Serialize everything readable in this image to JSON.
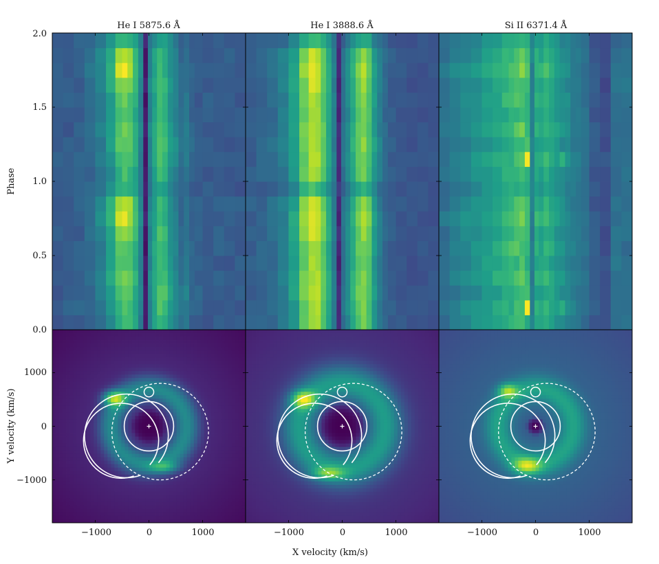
{
  "chart_data": [
    {
      "type": "heatmap",
      "kind": "trailed-spectrogram",
      "title": "He I 5875.6 Å",
      "ylabel": "Phase",
      "ylim": [
        0.0,
        2.0
      ],
      "yticks": [
        "0.0",
        "0.5",
        "1.0",
        "1.5",
        "2.0"
      ],
      "xlim": [
        -1800,
        1800
      ],
      "velocity_bins_kms": [
        -1700,
        -1500,
        -1300,
        -1100,
        -900,
        -700,
        -550,
        -450,
        -350,
        -250,
        -150,
        -60,
        20,
        100,
        200,
        300,
        400,
        500,
        600,
        700,
        800,
        900,
        1100,
        1300,
        1500,
        1700
      ],
      "phase_bins": [
        0.0,
        0.1,
        0.2,
        0.3,
        0.4,
        0.5,
        0.6,
        0.7,
        0.8,
        0.9
      ],
      "intensity_grid": [
        [
          0.28,
          0.3,
          0.3,
          0.32,
          0.36,
          0.48,
          0.62,
          0.7,
          0.66,
          0.58,
          0.4,
          0.05,
          0.42,
          0.55,
          0.68,
          0.62,
          0.5,
          0.44,
          0.36,
          0.4,
          0.3,
          0.3,
          0.28,
          0.3,
          0.28,
          0.3
        ],
        [
          0.3,
          0.3,
          0.32,
          0.34,
          0.4,
          0.52,
          0.66,
          0.72,
          0.7,
          0.6,
          0.42,
          0.06,
          0.44,
          0.58,
          0.72,
          0.66,
          0.54,
          0.48,
          0.38,
          0.42,
          0.32,
          0.3,
          0.3,
          0.28,
          0.3,
          0.28
        ],
        [
          0.28,
          0.3,
          0.3,
          0.34,
          0.42,
          0.56,
          0.72,
          0.76,
          0.74,
          0.62,
          0.44,
          0.06,
          0.46,
          0.6,
          0.74,
          0.7,
          0.56,
          0.5,
          0.4,
          0.44,
          0.34,
          0.32,
          0.3,
          0.3,
          0.28,
          0.3
        ],
        [
          0.3,
          0.28,
          0.32,
          0.36,
          0.44,
          0.58,
          0.74,
          0.78,
          0.74,
          0.64,
          0.46,
          0.08,
          0.46,
          0.58,
          0.7,
          0.66,
          0.54,
          0.46,
          0.38,
          0.42,
          0.32,
          0.3,
          0.28,
          0.3,
          0.3,
          0.28
        ],
        [
          0.28,
          0.3,
          0.3,
          0.34,
          0.4,
          0.54,
          0.7,
          0.74,
          0.7,
          0.6,
          0.44,
          0.06,
          0.44,
          0.56,
          0.66,
          0.62,
          0.5,
          0.44,
          0.36,
          0.4,
          0.3,
          0.3,
          0.3,
          0.28,
          0.28,
          0.3
        ],
        [
          0.3,
          0.3,
          0.32,
          0.34,
          0.42,
          0.56,
          0.72,
          0.76,
          0.72,
          0.62,
          0.44,
          0.06,
          0.44,
          0.58,
          0.68,
          0.64,
          0.52,
          0.46,
          0.36,
          0.4,
          0.32,
          0.28,
          0.3,
          0.3,
          0.3,
          0.28
        ],
        [
          0.28,
          0.3,
          0.3,
          0.36,
          0.44,
          0.6,
          0.78,
          0.82,
          0.78,
          0.66,
          0.46,
          0.08,
          0.46,
          0.58,
          0.7,
          0.66,
          0.52,
          0.44,
          0.36,
          0.38,
          0.3,
          0.3,
          0.28,
          0.3,
          0.28,
          0.3
        ],
        [
          0.3,
          0.28,
          0.32,
          0.38,
          0.48,
          0.66,
          0.92,
          0.98,
          0.86,
          0.7,
          0.48,
          0.08,
          0.46,
          0.56,
          0.66,
          0.62,
          0.5,
          0.44,
          0.34,
          0.38,
          0.32,
          0.3,
          0.3,
          0.28,
          0.3,
          0.28
        ],
        [
          0.28,
          0.3,
          0.3,
          0.36,
          0.46,
          0.62,
          0.86,
          0.9,
          0.84,
          0.68,
          0.46,
          0.06,
          0.44,
          0.56,
          0.66,
          0.6,
          0.5,
          0.42,
          0.34,
          0.36,
          0.3,
          0.3,
          0.28,
          0.3,
          0.3,
          0.3
        ],
        [
          0.26,
          0.28,
          0.3,
          0.32,
          0.38,
          0.5,
          0.62,
          0.66,
          0.62,
          0.56,
          0.4,
          0.1,
          0.4,
          0.5,
          0.58,
          0.56,
          0.46,
          0.4,
          0.32,
          0.34,
          0.28,
          0.28,
          0.3,
          0.28,
          0.28,
          0.26
        ]
      ]
    },
    {
      "type": "heatmap",
      "kind": "trailed-spectrogram",
      "title": "He I 3888.6 Å",
      "ylim": [
        0.0,
        2.0
      ],
      "xlim": [
        -1800,
        1800
      ],
      "velocity_bins_kms": [
        -1700,
        -1500,
        -1300,
        -1100,
        -900,
        -700,
        -550,
        -450,
        -350,
        -250,
        -150,
        -60,
        20,
        100,
        200,
        300,
        400,
        500,
        600,
        700,
        800,
        900,
        1100,
        1300,
        1500,
        1700
      ],
      "phase_bins": [
        0.0,
        0.1,
        0.2,
        0.3,
        0.4,
        0.5,
        0.6,
        0.7,
        0.8,
        0.9
      ],
      "intensity_grid": [
        [
          0.3,
          0.32,
          0.34,
          0.4,
          0.52,
          0.74,
          0.86,
          0.84,
          0.72,
          0.58,
          0.4,
          0.12,
          0.36,
          0.46,
          0.6,
          0.72,
          0.78,
          0.7,
          0.52,
          0.42,
          0.34,
          0.3,
          0.28,
          0.26,
          0.26,
          0.26
        ],
        [
          0.3,
          0.32,
          0.36,
          0.42,
          0.54,
          0.76,
          0.88,
          0.86,
          0.74,
          0.6,
          0.42,
          0.1,
          0.38,
          0.48,
          0.62,
          0.74,
          0.8,
          0.72,
          0.54,
          0.42,
          0.34,
          0.3,
          0.28,
          0.26,
          0.26,
          0.26
        ],
        [
          0.3,
          0.32,
          0.36,
          0.44,
          0.56,
          0.78,
          0.9,
          0.88,
          0.76,
          0.62,
          0.42,
          0.12,
          0.38,
          0.5,
          0.64,
          0.76,
          0.82,
          0.74,
          0.56,
          0.44,
          0.34,
          0.3,
          0.28,
          0.26,
          0.26,
          0.26
        ],
        [
          0.3,
          0.32,
          0.36,
          0.44,
          0.56,
          0.78,
          0.88,
          0.86,
          0.74,
          0.6,
          0.42,
          0.12,
          0.38,
          0.48,
          0.62,
          0.74,
          0.8,
          0.7,
          0.54,
          0.42,
          0.34,
          0.3,
          0.28,
          0.26,
          0.26,
          0.26
        ],
        [
          0.3,
          0.32,
          0.34,
          0.42,
          0.54,
          0.76,
          0.86,
          0.84,
          0.72,
          0.58,
          0.4,
          0.1,
          0.36,
          0.46,
          0.6,
          0.72,
          0.78,
          0.7,
          0.52,
          0.42,
          0.34,
          0.3,
          0.28,
          0.26,
          0.26,
          0.26
        ],
        [
          0.3,
          0.32,
          0.34,
          0.42,
          0.54,
          0.76,
          0.88,
          0.86,
          0.74,
          0.6,
          0.42,
          0.12,
          0.38,
          0.48,
          0.62,
          0.74,
          0.8,
          0.72,
          0.54,
          0.42,
          0.34,
          0.3,
          0.28,
          0.26,
          0.26,
          0.26
        ],
        [
          0.3,
          0.32,
          0.36,
          0.44,
          0.58,
          0.8,
          0.92,
          0.9,
          0.76,
          0.62,
          0.42,
          0.12,
          0.38,
          0.48,
          0.62,
          0.76,
          0.84,
          0.74,
          0.56,
          0.44,
          0.34,
          0.3,
          0.28,
          0.26,
          0.26,
          0.26
        ],
        [
          0.3,
          0.32,
          0.36,
          0.44,
          0.58,
          0.84,
          0.98,
          0.94,
          0.78,
          0.62,
          0.42,
          0.1,
          0.38,
          0.5,
          0.64,
          0.8,
          0.9,
          0.78,
          0.56,
          0.44,
          0.34,
          0.3,
          0.28,
          0.26,
          0.26,
          0.26
        ],
        [
          0.3,
          0.32,
          0.36,
          0.44,
          0.56,
          0.8,
          0.92,
          0.88,
          0.76,
          0.6,
          0.42,
          0.1,
          0.36,
          0.48,
          0.62,
          0.76,
          0.84,
          0.74,
          0.54,
          0.42,
          0.34,
          0.3,
          0.28,
          0.26,
          0.26,
          0.26
        ],
        [
          0.3,
          0.3,
          0.32,
          0.36,
          0.46,
          0.62,
          0.7,
          0.68,
          0.6,
          0.5,
          0.36,
          0.16,
          0.32,
          0.4,
          0.5,
          0.58,
          0.62,
          0.56,
          0.44,
          0.36,
          0.32,
          0.28,
          0.26,
          0.26,
          0.26,
          0.26
        ]
      ]
    },
    {
      "type": "heatmap",
      "kind": "trailed-spectrogram",
      "title": "Si II 6371.4 Å",
      "ylim": [
        0.0,
        2.0
      ],
      "xlim": [
        -1800,
        1800
      ],
      "velocity_bins_kms": [
        -1700,
        -1500,
        -1300,
        -1100,
        -900,
        -700,
        -550,
        -450,
        -350,
        -250,
        -150,
        -60,
        20,
        100,
        200,
        300,
        400,
        500,
        600,
        700,
        800,
        900,
        1100,
        1300,
        1500,
        1700
      ],
      "phase_bins": [
        0.0,
        0.1,
        0.2,
        0.3,
        0.4,
        0.5,
        0.6,
        0.7,
        0.8,
        0.9
      ],
      "intensity_grid": [
        [
          0.36,
          0.4,
          0.44,
          0.5,
          0.54,
          0.58,
          0.62,
          0.64,
          0.66,
          0.7,
          0.62,
          0.44,
          0.6,
          0.58,
          0.62,
          0.56,
          0.52,
          0.48,
          0.46,
          0.42,
          0.4,
          0.36,
          0.28,
          0.24,
          0.36,
          0.38
        ],
        [
          0.38,
          0.42,
          0.48,
          0.52,
          0.56,
          0.6,
          0.64,
          0.62,
          0.7,
          0.72,
          0.98,
          0.42,
          0.62,
          0.6,
          0.66,
          0.6,
          0.54,
          0.62,
          0.5,
          0.44,
          0.42,
          0.38,
          0.3,
          0.26,
          0.36,
          0.36
        ],
        [
          0.36,
          0.4,
          0.44,
          0.48,
          0.52,
          0.56,
          0.6,
          0.62,
          0.64,
          0.68,
          0.7,
          0.46,
          0.58,
          0.56,
          0.6,
          0.58,
          0.52,
          0.48,
          0.46,
          0.42,
          0.4,
          0.36,
          0.28,
          0.22,
          0.38,
          0.38
        ],
        [
          0.38,
          0.44,
          0.5,
          0.54,
          0.58,
          0.62,
          0.66,
          0.68,
          0.72,
          0.78,
          0.66,
          0.4,
          0.64,
          0.62,
          0.66,
          0.6,
          0.56,
          0.52,
          0.48,
          0.44,
          0.4,
          0.38,
          0.3,
          0.26,
          0.36,
          0.36
        ],
        [
          0.36,
          0.4,
          0.46,
          0.52,
          0.56,
          0.58,
          0.6,
          0.64,
          0.66,
          0.7,
          0.62,
          0.42,
          0.6,
          0.58,
          0.6,
          0.56,
          0.52,
          0.5,
          0.46,
          0.42,
          0.4,
          0.36,
          0.28,
          0.24,
          0.38,
          0.38
        ],
        [
          0.38,
          0.42,
          0.48,
          0.52,
          0.56,
          0.6,
          0.66,
          0.72,
          0.76,
          0.7,
          0.64,
          0.44,
          0.62,
          0.6,
          0.64,
          0.6,
          0.54,
          0.52,
          0.48,
          0.44,
          0.42,
          0.38,
          0.3,
          0.24,
          0.36,
          0.36
        ],
        [
          0.36,
          0.4,
          0.46,
          0.5,
          0.54,
          0.58,
          0.62,
          0.66,
          0.68,
          0.72,
          0.68,
          0.42,
          0.6,
          0.58,
          0.62,
          0.58,
          0.52,
          0.48,
          0.46,
          0.42,
          0.4,
          0.36,
          0.28,
          0.22,
          0.38,
          0.38
        ],
        [
          0.4,
          0.46,
          0.52,
          0.54,
          0.58,
          0.62,
          0.66,
          0.7,
          0.74,
          0.8,
          0.72,
          0.44,
          0.66,
          0.64,
          0.7,
          0.62,
          0.56,
          0.5,
          0.48,
          0.44,
          0.42,
          0.38,
          0.3,
          0.26,
          0.36,
          0.38
        ],
        [
          0.36,
          0.4,
          0.46,
          0.5,
          0.54,
          0.6,
          0.64,
          0.66,
          0.7,
          0.74,
          0.7,
          0.46,
          0.62,
          0.6,
          0.64,
          0.58,
          0.54,
          0.5,
          0.46,
          0.42,
          0.4,
          0.36,
          0.28,
          0.24,
          0.38,
          0.36
        ],
        [
          0.34,
          0.38,
          0.42,
          0.46,
          0.5,
          0.54,
          0.58,
          0.6,
          0.62,
          0.64,
          0.6,
          0.46,
          0.56,
          0.54,
          0.58,
          0.54,
          0.5,
          0.46,
          0.44,
          0.4,
          0.38,
          0.34,
          0.26,
          0.22,
          0.34,
          0.34
        ]
      ]
    },
    {
      "type": "heatmap",
      "kind": "doppler-tomogram",
      "line": "He I 5875.6 Å",
      "xlabel": "X velocity (km/s)",
      "ylabel": "Y velocity (km/s)",
      "xlim": [
        -1800,
        1800
      ],
      "ylim": [
        -1800,
        1800
      ],
      "xticks": [
        "−1000",
        "0",
        "1000"
      ],
      "yticks": [
        "1000",
        "0",
        "−1000"
      ],
      "background_level": 0.1,
      "ring": {
        "radius_kms": 700,
        "width_kms": 250,
        "level": 0.48,
        "inner_hole_radius_kms": 330,
        "inner_hole_level": 0.0
      },
      "hot_spots": [
        {
          "vx": -650,
          "vy": 520,
          "sx": 200,
          "sy": 140,
          "amp": 0.55
        },
        {
          "vx": 280,
          "vy": -760,
          "sx": 280,
          "sy": 110,
          "amp": 0.28
        }
      ]
    },
    {
      "type": "heatmap",
      "kind": "doppler-tomogram",
      "line": "He I 3888.6 Å",
      "xlim": [
        -1800,
        1800
      ],
      "ylim": [
        -1800,
        1800
      ],
      "xticks": [
        "−1000",
        "0",
        "1000"
      ],
      "background_level": 0.16,
      "ring": {
        "radius_kms": 800,
        "width_kms": 340,
        "level": 0.55,
        "inner_hole_radius_kms": 460,
        "inner_hole_level": 0.0
      },
      "hot_spots": [
        {
          "vx": -720,
          "vy": 500,
          "sx": 220,
          "sy": 160,
          "amp": 0.5
        },
        {
          "vx": -250,
          "vy": -880,
          "sx": 300,
          "sy": 120,
          "amp": 0.35
        }
      ]
    },
    {
      "type": "heatmap",
      "kind": "doppler-tomogram",
      "line": "Si II 6371.4 Å",
      "xlim": [
        -1800,
        1800
      ],
      "ylim": [
        -1800,
        1800
      ],
      "xticks": [
        "−1000",
        "0",
        "1000"
      ],
      "background_level": 0.3,
      "ring": {
        "radius_kms": 700,
        "width_kms": 260,
        "level": 0.58,
        "inner_hole_radius_kms": 260,
        "inner_hole_level": 0.28
      },
      "center_dip": {
        "radius_kms": 90,
        "level": 0.0
      },
      "hot_spots": [
        {
          "vx": -520,
          "vy": 660,
          "sx": 180,
          "sy": 130,
          "amp": 0.4
        },
        {
          "vx": -160,
          "vy": -740,
          "sx": 260,
          "sy": 150,
          "amp": 0.42
        }
      ]
    }
  ],
  "overlay": {
    "color": "#ffffff",
    "secondary_roche_lobe": {
      "center_kms": [
        0,
        0
      ],
      "radius_kms": 460
    },
    "primary_roche_lobe_dashed": {
      "center_kms": [
        210,
        -100
      ],
      "radius_kms": 900
    },
    "accretion_stream": {
      "start_kms": [
        0,
        600
      ],
      "loop_radius_kms": 90
    },
    "stream_arcs_kms": [
      {
        "center": [
          -520,
          -270
        ],
        "radius": 700
      },
      {
        "center": [
          -420,
          -180
        ],
        "radius": 780
      }
    ],
    "primary_marker_kms": [
      0,
      0
    ]
  },
  "labels": {
    "x_axis_label": "X velocity (km/s)",
    "y_axis_label_bottom": "Y velocity (km/s)",
    "y_axis_label_top": "Phase"
  },
  "colors": {
    "colormap": "viridis",
    "overlay": "#ffffff",
    "axes": "#000000"
  }
}
